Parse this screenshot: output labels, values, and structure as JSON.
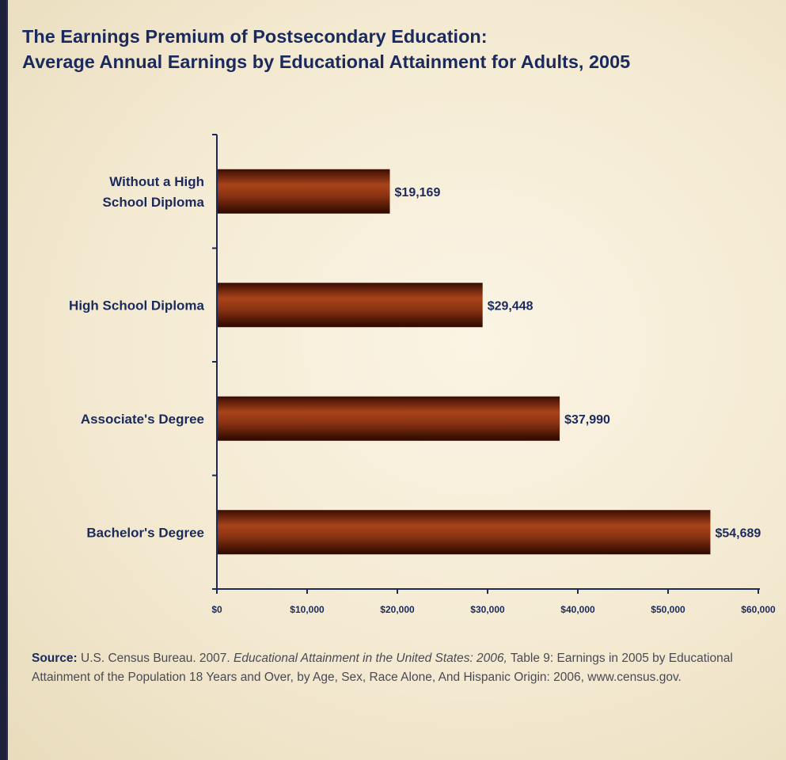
{
  "chart_data": {
    "type": "bar",
    "orientation": "horizontal",
    "title_line1": "The Earnings Premium of Postsecondary Education:",
    "title_line2": "Average Annual Earnings by Educational Attainment for Adults, 2005",
    "categories": [
      [
        "Without a High",
        "School Diploma"
      ],
      [
        "High School Diploma"
      ],
      [
        "Associate's Degree"
      ],
      [
        "Bachelor's Degree"
      ]
    ],
    "values": [
      19169,
      29448,
      37990,
      54689
    ],
    "value_labels": [
      "$19,169",
      "$29,448",
      "$37,990",
      "$54,689"
    ],
    "xlim": [
      0,
      60000
    ],
    "x_ticks": [
      0,
      10000,
      20000,
      30000,
      40000,
      50000,
      60000
    ],
    "x_tick_labels": [
      "$0",
      "$10,000",
      "$20,000",
      "$30,000",
      "$40,000",
      "$50,000",
      "$60,000"
    ],
    "grid": false,
    "bar_color": "#7a2a10",
    "axis_color": "#1b2a5c"
  },
  "source": {
    "label": "Source:",
    "text_1": " U.S. Census Bureau. 2007. ",
    "italic": "Educational Attainment in the United States: 2006,",
    "text_2": " Table 9: Earnings in 2005 by Educational Attainment of the Population 18 Years and Over, by Age, Sex, Race Alone, And Hispanic Origin: 2006, www.census.gov."
  }
}
